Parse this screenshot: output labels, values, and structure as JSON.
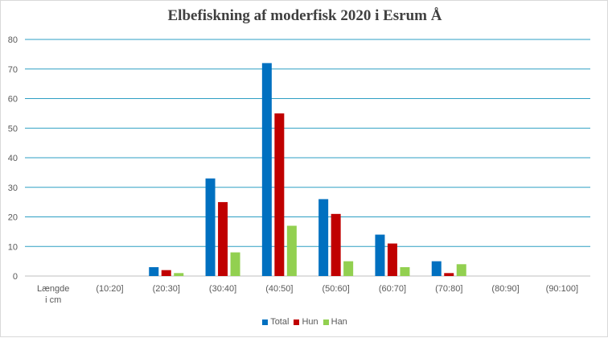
{
  "chart_data": {
    "type": "bar",
    "title": "Elbefiskning af moderfisk 2020 i Esrum Å",
    "xlabel": "",
    "ylabel": "",
    "categories": [
      "Længde i cm",
      "(10:20]",
      "(20:30]",
      "(30:40]",
      "(40:50]",
      "(50:60]",
      "(60:70]",
      "(70:80]",
      "(80:90]",
      "(90:100]"
    ],
    "category_lines": [
      [
        "Længde",
        "i cm"
      ],
      [
        "(10:20]"
      ],
      [
        "(20:30]"
      ],
      [
        "(30:40]"
      ],
      [
        "(40:50]"
      ],
      [
        "(50:60]"
      ],
      [
        "(60:70]"
      ],
      [
        "(70:80]"
      ],
      [
        "(80:90]"
      ],
      [
        "(90:100]"
      ]
    ],
    "series": [
      {
        "name": "Total",
        "color": "#0070c0",
        "values": [
          0,
          0,
          3,
          33,
          72,
          26,
          14,
          5,
          0,
          0
        ]
      },
      {
        "name": "Hun",
        "color": "#c00000",
        "values": [
          0,
          0,
          2,
          25,
          55,
          21,
          11,
          1,
          0,
          0
        ]
      },
      {
        "name": "Han",
        "color": "#92d050",
        "values": [
          0,
          0,
          1,
          8,
          17,
          5,
          3,
          4,
          0,
          0
        ]
      }
    ],
    "ylim": [
      0,
      80
    ],
    "yticks": [
      0,
      10,
      20,
      30,
      40,
      50,
      60,
      70,
      80
    ],
    "grid": true,
    "gridline_color": "#2e9fc4",
    "legend_position": "bottom"
  }
}
